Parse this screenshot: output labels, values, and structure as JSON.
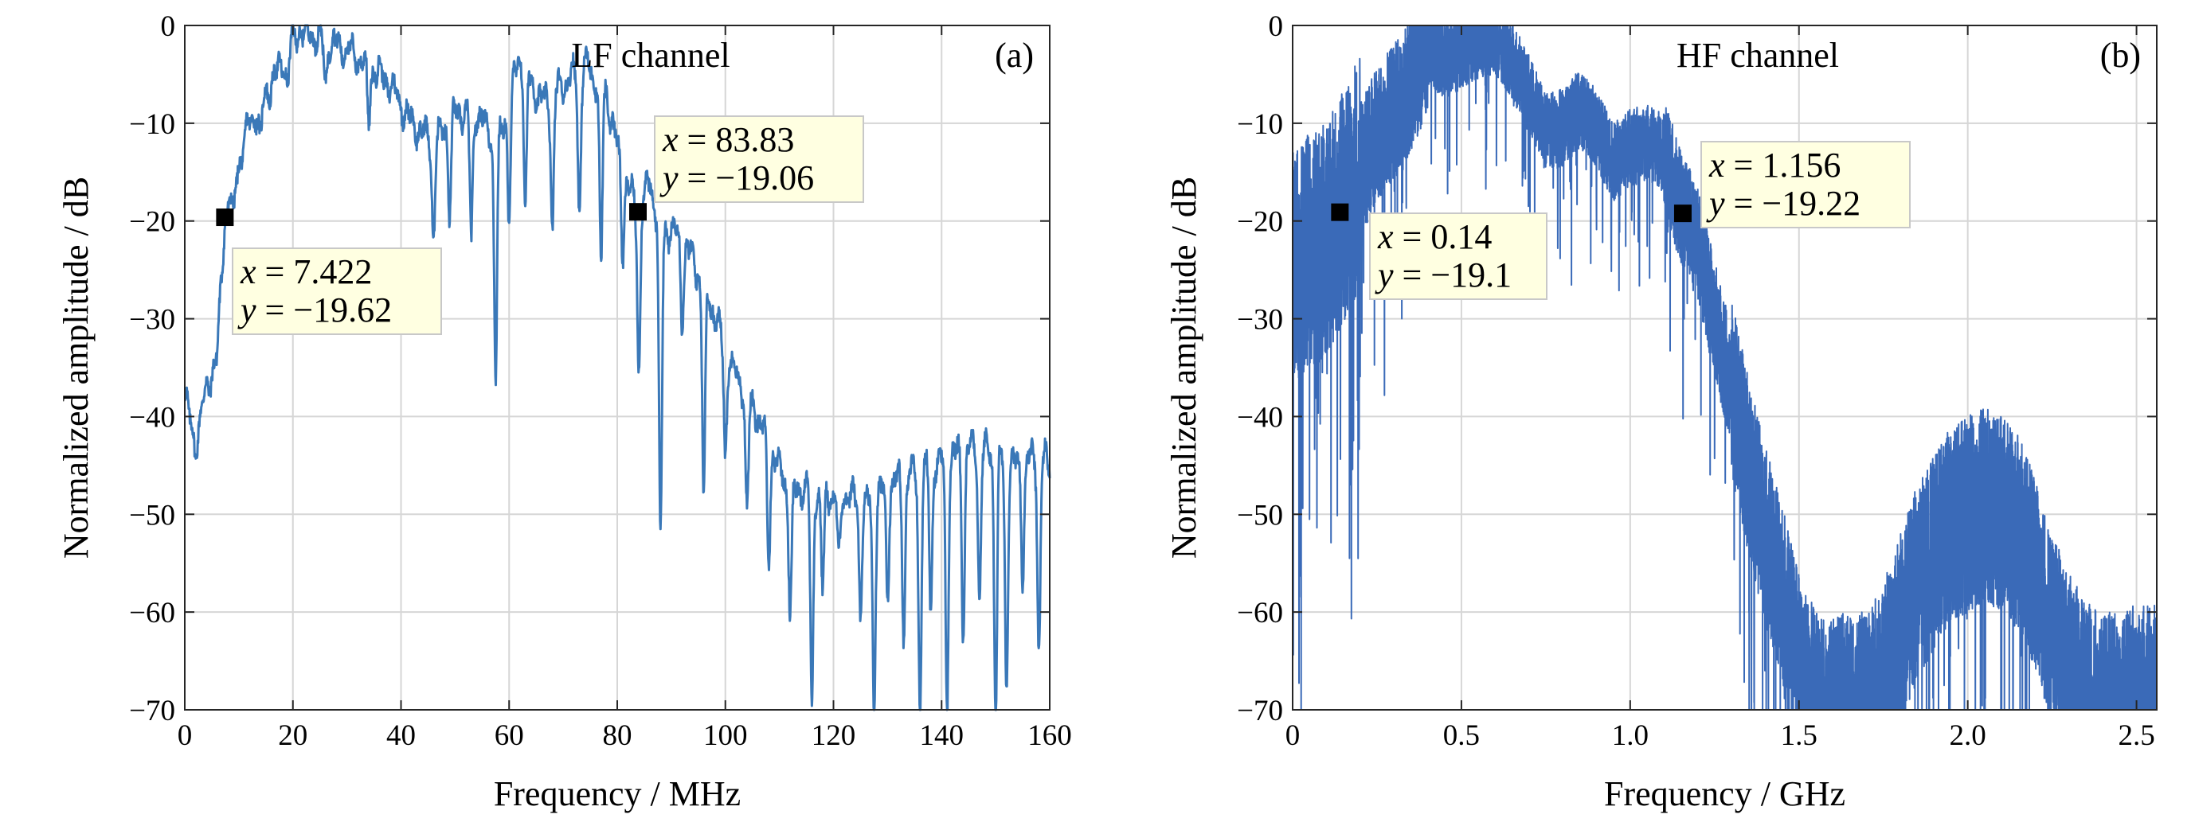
{
  "chart_data": [
    {
      "type": "line",
      "title": "LF channel",
      "panel_label": "(a)",
      "xlabel": "Frequency / MHz",
      "ylabel": "Normalized amplitude / dB",
      "xlim": [
        0,
        160
      ],
      "ylim": [
        -70,
        0
      ],
      "xticks": [
        0,
        20,
        40,
        60,
        80,
        100,
        120,
        140,
        160
      ],
      "xtick_labels": [
        "0",
        "20",
        "40",
        "60",
        "80",
        "100",
        "120",
        "140",
        "160"
      ],
      "yticks": [
        0,
        -10,
        -20,
        -30,
        -40,
        -50,
        -60,
        -70
      ],
      "ytick_labels": [
        "0",
        "−10",
        "−20",
        "−30",
        "−40",
        "−50",
        "−60",
        "−70"
      ],
      "grid": true,
      "series_color": "#3a78b8",
      "envelope": [
        [
          0,
          -38
        ],
        [
          2,
          -43
        ],
        [
          4,
          -37
        ],
        [
          6,
          -34
        ],
        [
          7.4,
          -19.6
        ],
        [
          9,
          -16
        ],
        [
          12,
          -10
        ],
        [
          15,
          -7
        ],
        [
          18,
          -4
        ],
        [
          21,
          -0.5
        ],
        [
          23,
          -0.8
        ],
        [
          26,
          -1.5
        ],
        [
          30,
          -2.5
        ],
        [
          34,
          -4
        ],
        [
          38,
          -6
        ],
        [
          42,
          -10
        ],
        [
          46,
          -12
        ],
        [
          50,
          -9
        ],
        [
          54,
          -9
        ],
        [
          58,
          -12
        ],
        [
          62,
          -3
        ],
        [
          66,
          -8
        ],
        [
          70,
          -6
        ],
        [
          74,
          -4
        ],
        [
          78,
          -7
        ],
        [
          81,
          -15
        ],
        [
          83.8,
          -19.1
        ],
        [
          86,
          -16
        ],
        [
          88,
          -21
        ],
        [
          91,
          -21
        ],
        [
          94,
          -24
        ],
        [
          97,
          -28
        ],
        [
          100,
          -33
        ],
        [
          103,
          -37
        ],
        [
          106,
          -40
        ],
        [
          109,
          -44
        ],
        [
          112,
          -48
        ],
        [
          115,
          -47
        ],
        [
          118,
          -48
        ],
        [
          122,
          -48
        ],
        [
          126,
          -49
        ],
        [
          130,
          -47
        ],
        [
          134,
          -46
        ],
        [
          138,
          -45
        ],
        [
          142,
          -44
        ],
        [
          146,
          -43
        ],
        [
          150,
          -44
        ],
        [
          154,
          -45
        ],
        [
          158,
          -44
        ],
        [
          160,
          -45
        ]
      ],
      "dips": [
        [
          9,
          -20
        ],
        [
          14,
          -12
        ],
        [
          19,
          -6
        ],
        [
          26,
          -6
        ],
        [
          34,
          -10
        ],
        [
          46,
          -22
        ],
        [
          49,
          -19
        ],
        [
          53,
          -22
        ],
        [
          57.5,
          -36
        ],
        [
          60,
          -20
        ],
        [
          63,
          -19
        ],
        [
          68,
          -21
        ],
        [
          73,
          -19
        ],
        [
          77,
          -25
        ],
        [
          81,
          -23
        ],
        [
          84,
          -35
        ],
        [
          88,
          -53
        ],
        [
          92,
          -30
        ],
        [
          96,
          -48
        ],
        [
          100,
          -44
        ],
        [
          104,
          -50
        ],
        [
          108,
          -55
        ],
        [
          112,
          -60
        ],
        [
          116,
          -70
        ],
        [
          118,
          -58
        ],
        [
          121,
          -55
        ],
        [
          125,
          -60
        ],
        [
          127.5,
          -70
        ],
        [
          130,
          -58
        ],
        [
          133,
          -62
        ],
        [
          136,
          -70
        ],
        [
          138,
          -60
        ],
        [
          141,
          -70
        ],
        [
          144,
          -62
        ],
        [
          147,
          -58
        ],
        [
          150,
          -70
        ],
        [
          152,
          -68
        ],
        [
          155,
          -56
        ],
        [
          158,
          -64
        ]
      ],
      "datatips": [
        {
          "x_text": "x = 7.422",
          "y_text": "y = −19.62",
          "x": 7.422,
          "y": -19.62
        },
        {
          "x_text": "x = 83.83",
          "y_text": "y = −19.06",
          "x": 83.83,
          "y": -19.06
        }
      ]
    },
    {
      "type": "line",
      "title": "HF channel",
      "panel_label": "(b)",
      "xlabel": "Frequency / GHz",
      "ylabel": "Normalized amplitude / dB",
      "xlim": [
        0,
        2.56
      ],
      "ylim": [
        -70,
        0
      ],
      "xticks": [
        0,
        0.5,
        1.0,
        1.5,
        2.0,
        2.5
      ],
      "xtick_labels": [
        "0",
        "0.5",
        "1.0",
        "1.5",
        "2.0",
        "2.5"
      ],
      "yticks": [
        0,
        -10,
        -20,
        -30,
        -40,
        -50,
        -60,
        -70
      ],
      "ytick_labels": [
        "0",
        "−10",
        "−20",
        "−30",
        "−40",
        "−50",
        "−60",
        "−70"
      ],
      "grid": true,
      "series_color": "#3a6ab8",
      "envelope": [
        [
          0,
          -25
        ],
        [
          0.05,
          -23
        ],
        [
          0.1,
          -22
        ],
        [
          0.14,
          -19.1
        ],
        [
          0.2,
          -15
        ],
        [
          0.25,
          -11
        ],
        [
          0.3,
          -9
        ],
        [
          0.35,
          -6
        ],
        [
          0.4,
          -2
        ],
        [
          0.45,
          -3.5
        ],
        [
          0.5,
          -2.5
        ],
        [
          0.55,
          -1.5
        ],
        [
          0.6,
          -1
        ],
        [
          0.65,
          -3.5
        ],
        [
          0.7,
          -7
        ],
        [
          0.75,
          -11
        ],
        [
          0.8,
          -10.5
        ],
        [
          0.85,
          -8.5
        ],
        [
          0.9,
          -10.5
        ],
        [
          0.95,
          -14
        ],
        [
          1.0,
          -12.5
        ],
        [
          1.05,
          -12
        ],
        [
          1.1,
          -13
        ],
        [
          1.156,
          -19.22
        ],
        [
          1.2,
          -22
        ],
        [
          1.25,
          -30
        ],
        [
          1.3,
          -37
        ],
        [
          1.35,
          -45
        ],
        [
          1.4,
          -52
        ],
        [
          1.45,
          -58
        ],
        [
          1.5,
          -65
        ],
        [
          1.55,
          -69
        ],
        [
          1.6,
          -70
        ],
        [
          1.7,
          -70
        ],
        [
          1.75,
          -67
        ],
        [
          1.8,
          -62
        ],
        [
          1.85,
          -57
        ],
        [
          1.9,
          -54
        ],
        [
          1.95,
          -51
        ],
        [
          2.0,
          -50
        ],
        [
          2.05,
          -49
        ],
        [
          2.1,
          -50
        ],
        [
          2.15,
          -52
        ],
        [
          2.2,
          -56
        ],
        [
          2.25,
          -62
        ],
        [
          2.3,
          -66
        ],
        [
          2.35,
          -69
        ],
        [
          2.4,
          -70
        ],
        [
          2.45,
          -70
        ],
        [
          2.5,
          -69
        ],
        [
          2.56,
          -69
        ]
      ],
      "noise": [
        [
          0,
          0.2,
          12
        ],
        [
          0.2,
          0.4,
          7
        ],
        [
          0.4,
          0.7,
          4
        ],
        [
          0.7,
          1.1,
          4
        ],
        [
          1.1,
          1.3,
          6
        ],
        [
          1.3,
          1.6,
          9
        ],
        [
          1.6,
          2.56,
          10
        ]
      ],
      "datatips": [
        {
          "x_text": "x = 0.14",
          "y_text": "y = −19.1",
          "x": 0.14,
          "y": -19.1
        },
        {
          "x_text": "x = 1.156",
          "y_text": "y = −19.22",
          "x": 1.156,
          "y": -19.22
        }
      ]
    }
  ]
}
